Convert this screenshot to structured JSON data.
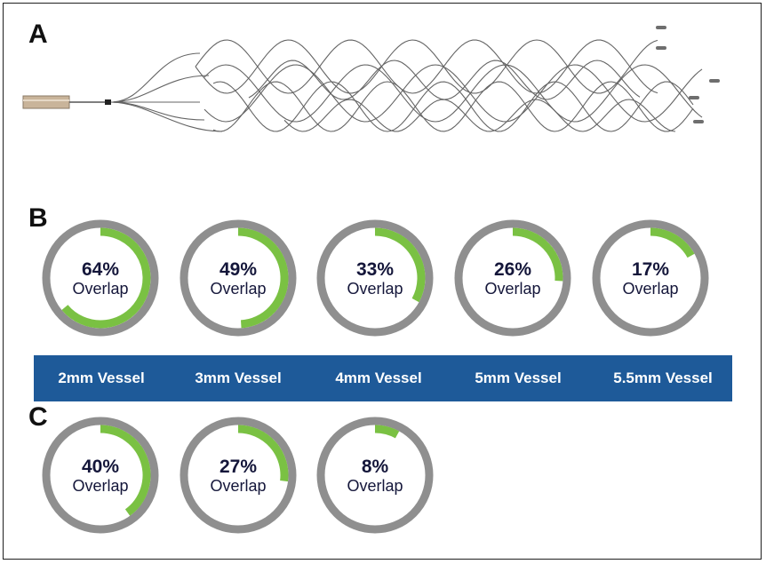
{
  "panels": {
    "a": "A",
    "b": "B",
    "c": "C"
  },
  "colors": {
    "ring_gray": "#8f8f8f",
    "overlap_green": "#7ac143",
    "bar_blue": "#1e5a99",
    "text_navy": "#14163a"
  },
  "panel_b": {
    "gauges": [
      {
        "percent": 64,
        "percent_label": "64%",
        "caption": "Overlap"
      },
      {
        "percent": 49,
        "percent_label": "49%",
        "caption": "Overlap"
      },
      {
        "percent": 33,
        "percent_label": "33%",
        "caption": "Overlap"
      },
      {
        "percent": 26,
        "percent_label": "26%",
        "caption": "Overlap"
      },
      {
        "percent": 17,
        "percent_label": "17%",
        "caption": "Overlap"
      }
    ],
    "vessels": [
      "2mm Vessel",
      "3mm Vessel",
      "4mm Vessel",
      "5mm Vessel",
      "5.5mm Vessel"
    ]
  },
  "panel_c": {
    "gauges": [
      {
        "percent": 40,
        "percent_label": "40%",
        "caption": "Overlap"
      },
      {
        "percent": 27,
        "percent_label": "27%",
        "caption": "Overlap"
      },
      {
        "percent": 8,
        "percent_label": "8%",
        "caption": "Overlap"
      }
    ]
  }
}
